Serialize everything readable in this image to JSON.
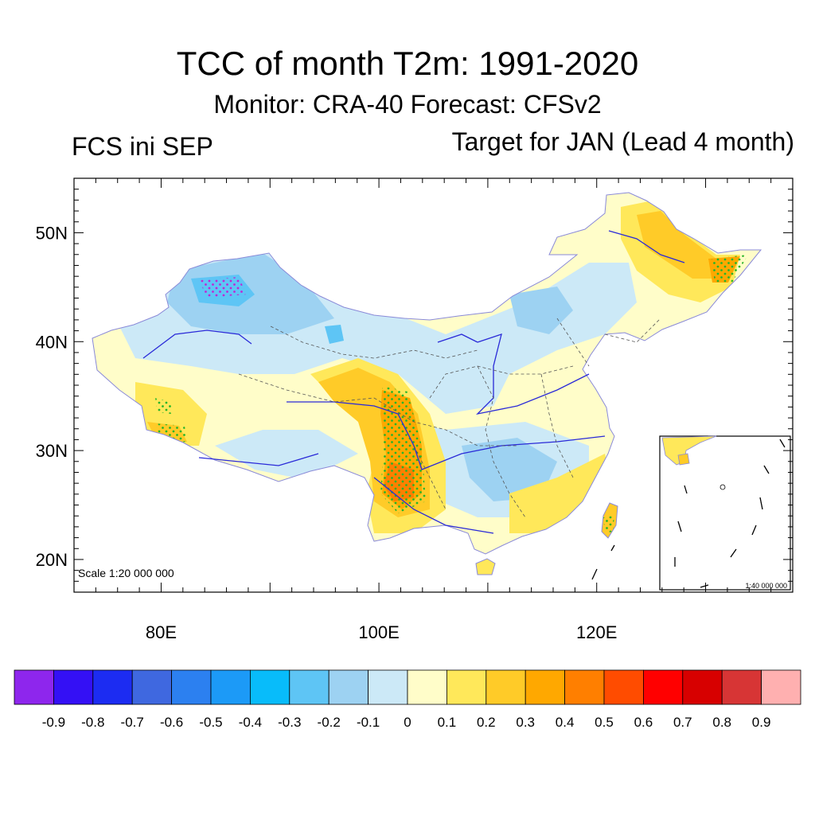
{
  "title": "TCC of month T2m: 1991-2020",
  "subtitle": "Monitor: CRA-40   Forecast: CFSv2",
  "left_label": "FCS ini SEP",
  "right_label": "Target for JAN (Lead 4 month)",
  "scale_main": "Scale 1:20 000 000",
  "scale_inset": "1:40 000 000",
  "lat_labels": [
    "50N",
    "40N",
    "30N",
    "20N"
  ],
  "lat_values": [
    50,
    40,
    30,
    20
  ],
  "lon_labels": [
    "80E",
    "100E",
    "120E"
  ],
  "lon_values": [
    80,
    100,
    120
  ],
  "map_extent": {
    "lon": [
      72,
      138
    ],
    "lat": [
      17,
      55
    ]
  },
  "colorbar": {
    "colors": [
      "#8e26ed",
      "#3410f5",
      "#1c2cf2",
      "#3f68e0",
      "#2c80f0",
      "#1c9af7",
      "#08bcfa",
      "#5ec5f5",
      "#9dd2f2",
      "#cce9f7",
      "#fffdc9",
      "#ffe85a",
      "#ffcb28",
      "#ffa800",
      "#ff7f00",
      "#ff4c00",
      "#ff0000",
      "#d70000",
      "#d73535",
      "#ffb0b0"
    ],
    "labels": [
      "-0.9",
      "-0.8",
      "-0.7",
      "-0.6",
      "-0.5",
      "-0.4",
      "-0.3",
      "-0.2",
      "-0.1",
      "0",
      "0.1",
      "0.2",
      "0.3",
      "0.4",
      "0.5",
      "0.6",
      "0.7",
      "0.8",
      "0.9"
    ]
  }
}
